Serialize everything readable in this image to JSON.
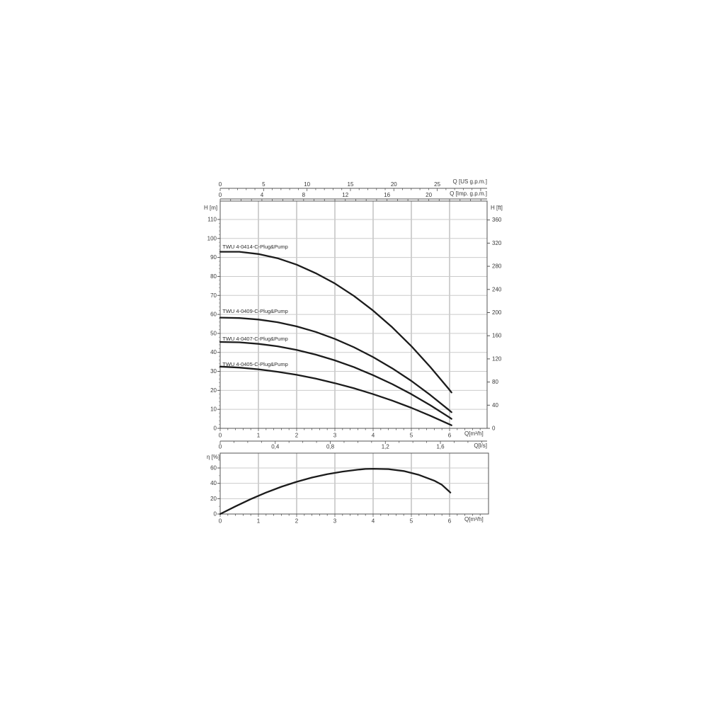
{
  "page_background": "#ffffff",
  "labels": {
    "us": "Q [US g.p.m.]",
    "imp": "Q [Imp. g.p.m.]",
    "h_m": "H [m]",
    "h_ft": "H [ft]",
    "q_m3h": "Q[m³/h]",
    "q_ls": "Q[l/s]",
    "eta": "η [%]",
    "q_m3h_eta": "Q[m³/h]"
  },
  "colors": {
    "curve": "#1b1b1b",
    "grid_horizontal": "#cbcbcb",
    "grid_vertical": "#a3a3a3",
    "axis": "#555555",
    "text": "#3a3a3a"
  },
  "chart_data": [
    {
      "type": "line",
      "name": "head-flow-curves",
      "xlabel": "Q[m³/h]",
      "ylabel_left": "H [m]",
      "ylabel_right": "H [ft]",
      "x_range_m3h": [
        0,
        6.98
      ],
      "y_range_m": [
        0,
        119.7
      ],
      "grid": true,
      "x_ticks_m3h": [
        0,
        1,
        2,
        3,
        4,
        5,
        6
      ],
      "x_minor_step_m3h": 0.2,
      "y_ticks_m": [
        0,
        10,
        20,
        30,
        40,
        50,
        60,
        70,
        80,
        90,
        100,
        110
      ],
      "y_ticks_ft": [
        0,
        40,
        80,
        120,
        160,
        200,
        240,
        280,
        320,
        360
      ],
      "ft_per_m": 3.2808,
      "top_axis_us_gpm": {
        "label": "Q [US g.p.m.]",
        "ticks": [
          0,
          5,
          10,
          15,
          20,
          25
        ],
        "minor_step": 1,
        "minor_max": 30,
        "units_per_m3h": 4.4029
      },
      "top_axis_imp_gpm": {
        "label": "Q [Imp. g.p.m.]",
        "ticks": [
          0,
          4,
          8,
          12,
          16,
          20
        ],
        "minor_step": 1,
        "minor_max": 25,
        "units_per_m3h": 3.6662
      },
      "bottom_axis_ls": {
        "label": "Q[l/s]",
        "ticks": [
          {
            "v": 0,
            "label": "0"
          },
          {
            "v": 0.4,
            "label": "0,4"
          },
          {
            "v": 0.8,
            "label": "0,8"
          },
          {
            "v": 1.2,
            "label": "1,2"
          },
          {
            "v": 1.6,
            "label": "1,6"
          }
        ],
        "minor_step": 0.1,
        "minor_max": 1.9,
        "units_per_m3h": 0.27778
      },
      "series": [
        {
          "name": "TWU 4-0414-C-Plug&Pump",
          "label_q": 0.06,
          "label_h": 97,
          "points": [
            [
              0,
              93
            ],
            [
              0.5,
              93
            ],
            [
              1,
              91.8
            ],
            [
              1.5,
              89.6
            ],
            [
              2,
              86.2
            ],
            [
              2.5,
              81.7
            ],
            [
              3,
              76.3
            ],
            [
              3.5,
              69.7
            ],
            [
              4,
              62
            ],
            [
              4.5,
              53.2
            ],
            [
              5,
              43.3
            ],
            [
              5.5,
              32.2
            ],
            [
              6,
              20.2
            ],
            [
              6.05,
              18.9
            ]
          ]
        },
        {
          "name": "TWU 4-0409-C-Plug&Pump",
          "label_q": 0.06,
          "label_h": 63,
          "points": [
            [
              0,
              58.3
            ],
            [
              0.5,
              58.1
            ],
            [
              1,
              57.3
            ],
            [
              1.5,
              55.9
            ],
            [
              2,
              53.7
            ],
            [
              2.5,
              50.8
            ],
            [
              3,
              47.1
            ],
            [
              3.5,
              42.7
            ],
            [
              4,
              37.5
            ],
            [
              4.5,
              31.6
            ],
            [
              5,
              25
            ],
            [
              5.5,
              17.5
            ],
            [
              6,
              9.4
            ],
            [
              6.05,
              8.5
            ]
          ]
        },
        {
          "name": "TWU 4-0407-C-Plug&Pump",
          "label_q": 0.06,
          "label_h": 48.5,
          "points": [
            [
              0,
              45.5
            ],
            [
              0.5,
              45.3
            ],
            [
              1,
              44.5
            ],
            [
              1.5,
              43.2
            ],
            [
              2,
              41.3
            ],
            [
              2.5,
              38.8
            ],
            [
              3,
              35.8
            ],
            [
              3.5,
              32.2
            ],
            [
              4,
              28
            ],
            [
              4.5,
              23.3
            ],
            [
              5,
              18
            ],
            [
              5.5,
              12.1
            ],
            [
              6,
              5.7
            ],
            [
              6.05,
              5
            ]
          ]
        },
        {
          "name": "TWU 4-0405-C-Plug&Pump",
          "label_q": 0.06,
          "label_h": 35,
          "points": [
            [
              0,
              32.5
            ],
            [
              0.5,
              32
            ],
            [
              1,
              31.1
            ],
            [
              1.5,
              29.8
            ],
            [
              2,
              28.2
            ],
            [
              2.5,
              26.2
            ],
            [
              3,
              23.8
            ],
            [
              3.5,
              21.1
            ],
            [
              4,
              18
            ],
            [
              4.5,
              14.6
            ],
            [
              5,
              10.8
            ],
            [
              5.5,
              6.6
            ],
            [
              6,
              2.1
            ],
            [
              6.05,
              1.6
            ]
          ]
        }
      ]
    },
    {
      "type": "line",
      "name": "efficiency-curve",
      "xlabel": "Q[m³/h]",
      "ylabel": "η [%]",
      "x_range_m3h": [
        0,
        7.0
      ],
      "y_range_pct": [
        0,
        79
      ],
      "grid": true,
      "x_ticks_m3h": [
        0,
        1,
        2,
        3,
        4,
        5,
        6
      ],
      "x_minor_step_m3h": 0.2,
      "y_ticks_pct": [
        0,
        20,
        40,
        60
      ],
      "series": [
        {
          "name": "efficiency",
          "points": [
            [
              0,
              0
            ],
            [
              0.4,
              10
            ],
            [
              0.8,
              19.5
            ],
            [
              1.2,
              28
            ],
            [
              1.6,
              35.5
            ],
            [
              2,
              42
            ],
            [
              2.4,
              47.5
            ],
            [
              2.8,
              52
            ],
            [
              3.2,
              55.3
            ],
            [
              3.6,
              57.8
            ],
            [
              3.8,
              58.7
            ],
            [
              4,
              59
            ],
            [
              4.4,
              58.5
            ],
            [
              4.8,
              56
            ],
            [
              5.2,
              51
            ],
            [
              5.6,
              43.5
            ],
            [
              5.8,
              38
            ],
            [
              6.02,
              28
            ]
          ]
        }
      ]
    }
  ]
}
